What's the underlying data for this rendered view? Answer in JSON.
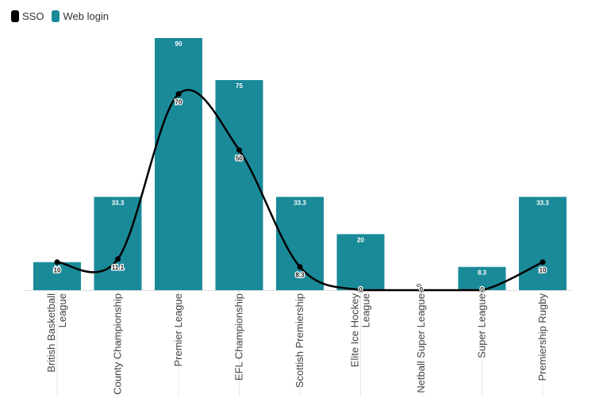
{
  "legend": {
    "sso": "SSO",
    "web_login": "Web login"
  },
  "colors": {
    "bar": "#1a8a99",
    "line": "#000000",
    "grid": "#e8e8e8",
    "axis_text": "#444444"
  },
  "chart_data": {
    "type": "bar",
    "categories": [
      "British Basketball League",
      "County Championship",
      "Premier League",
      "EFL Championship",
      "Scottish Premiership",
      "Elite Ice Hockey League",
      "Netball Super League",
      "Super League",
      "Premiership Rugby"
    ],
    "category_lines": [
      [
        "British Basketball",
        "League"
      ],
      [
        "County Championship"
      ],
      [
        "Premier League"
      ],
      [
        "EFL Championship"
      ],
      [
        "Scottish Premiership"
      ],
      [
        "Elite Ice Hockey",
        "League"
      ],
      [
        "Netball Super League"
      ],
      [
        "Super League"
      ],
      [
        "Premiership Rugby"
      ]
    ],
    "series": [
      {
        "name": "Web login",
        "type": "bar",
        "values": [
          10,
          33.3,
          90,
          75,
          33.3,
          20,
          0,
          8.3,
          33.3
        ],
        "labels": [
          "10",
          "33.3",
          "90",
          "75",
          "33.3",
          "20",
          "0",
          "8.3",
          "33.3"
        ]
      },
      {
        "name": "SSO",
        "type": "line",
        "values": [
          10,
          11.1,
          70,
          50,
          8.3,
          0,
          0,
          0,
          10
        ],
        "labels": [
          "10",
          "11.1",
          "70",
          "50",
          "8.3",
          "0",
          "0",
          "0",
          "10"
        ]
      }
    ],
    "ylim": [
      0,
      90
    ],
    "grid": false,
    "legend_position": "top-left"
  }
}
